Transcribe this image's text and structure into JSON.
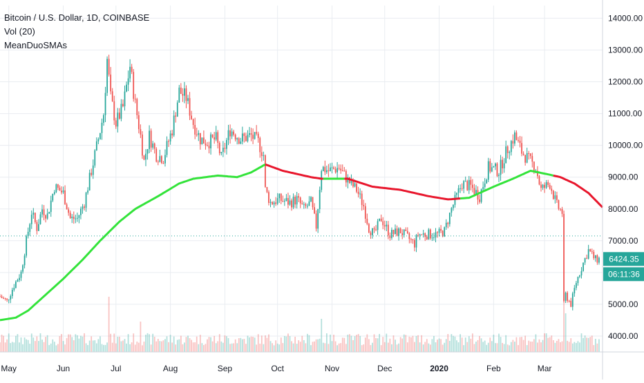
{
  "colors": {
    "up": "#26a69a",
    "down": "#ef5350",
    "sma_up": "#33e33a",
    "sma_down": "#e8162c",
    "grid": "#e9ecf1",
    "axis_text": "#131722",
    "price_line": "#26a69a",
    "badge": "#26a69a"
  },
  "legend": {
    "title": "Bitcoin / U.S. Dollar, 1D, COINBASE",
    "volume": "Vol (20)",
    "indicator": "MeanDuoSMAs"
  },
  "badges": {
    "last_price": "6424.35",
    "countdown": "06:11:36"
  },
  "chart_data": {
    "type": "candlestick",
    "title": "Bitcoin / U.S. Dollar, 1D, COINBASE",
    "x_tick_labels": [
      "May",
      "Jun",
      "Jul",
      "Aug",
      "Sep",
      "Oct",
      "Nov",
      "Dec",
      "2020",
      "Feb",
      "Mar"
    ],
    "y_tick_labels": [
      "4000.00",
      "5000.00",
      "6000.00",
      "7000.00",
      "8000.00",
      "9000.00",
      "10000.00",
      "11000.00",
      "12000.00",
      "13000.00",
      "14000.00"
    ],
    "ylim": [
      3500,
      14400
    ],
    "grid": true,
    "dotted_price_level": 7150,
    "price_anchors": [
      [
        "2019-04-26",
        5250
      ],
      [
        "2019-04-30",
        5100
      ],
      [
        "2019-05-04",
        5600
      ],
      [
        "2019-05-08",
        6000
      ],
      [
        "2019-05-11",
        7000
      ],
      [
        "2019-05-14",
        7900
      ],
      [
        "2019-05-17",
        7400
      ],
      [
        "2019-05-20",
        8000
      ],
      [
        "2019-05-23",
        7800
      ],
      [
        "2019-05-27",
        8700
      ],
      [
        "2019-06-01",
        8500
      ],
      [
        "2019-06-05",
        7700
      ],
      [
        "2019-06-09",
        7700
      ],
      [
        "2019-06-13",
        8200
      ],
      [
        "2019-06-17",
        9200
      ],
      [
        "2019-06-21",
        10200
      ],
      [
        "2019-06-24",
        11000
      ],
      [
        "2019-06-26",
        12700
      ],
      [
        "2019-06-28",
        11500
      ],
      [
        "2019-07-01",
        10700
      ],
      [
        "2019-07-05",
        11200
      ],
      [
        "2019-07-09",
        12500
      ],
      [
        "2019-07-12",
        11300
      ],
      [
        "2019-07-15",
        10300
      ],
      [
        "2019-07-17",
        9500
      ],
      [
        "2019-07-20",
        10300
      ],
      [
        "2019-07-24",
        9700
      ],
      [
        "2019-07-28",
        9600
      ],
      [
        "2019-08-02",
        10500
      ],
      [
        "2019-08-06",
        11700
      ],
      [
        "2019-08-10",
        11500
      ],
      [
        "2019-08-14",
        10700
      ],
      [
        "2019-08-18",
        10200
      ],
      [
        "2019-08-22",
        10100
      ],
      [
        "2019-08-27",
        10200
      ],
      [
        "2019-08-30",
        9600
      ],
      [
        "2019-09-04",
        10500
      ],
      [
        "2019-09-10",
        10200
      ],
      [
        "2019-09-16",
        10300
      ],
      [
        "2019-09-20",
        10100
      ],
      [
        "2019-09-23",
        9700
      ],
      [
        "2019-09-24",
        8600
      ],
      [
        "2019-09-27",
        8200
      ],
      [
        "2019-10-02",
        8300
      ],
      [
        "2019-10-08",
        8200
      ],
      [
        "2019-10-12",
        8300
      ],
      [
        "2019-10-16",
        8000
      ],
      [
        "2019-10-20",
        8200
      ],
      [
        "2019-10-23",
        7450
      ],
      [
        "2019-10-25",
        8700
      ],
      [
        "2019-10-26",
        9300
      ],
      [
        "2019-10-30",
        9200
      ],
      [
        "2019-11-05",
        9300
      ],
      [
        "2019-11-10",
        8900
      ],
      [
        "2019-11-15",
        8600
      ],
      [
        "2019-11-19",
        8100
      ],
      [
        "2019-11-22",
        7400
      ],
      [
        "2019-11-25",
        7200
      ],
      [
        "2019-11-29",
        7700
      ],
      [
        "2019-12-04",
        7200
      ],
      [
        "2019-12-10",
        7300
      ],
      [
        "2019-12-14",
        7100
      ],
      [
        "2019-12-18",
        6900
      ],
      [
        "2019-12-20",
        7200
      ],
      [
        "2019-12-25",
        7200
      ],
      [
        "2019-12-31",
        7200
      ],
      [
        "2020-01-04",
        7300
      ],
      [
        "2020-01-08",
        8000
      ],
      [
        "2020-01-14",
        8800
      ],
      [
        "2020-01-19",
        8700
      ],
      [
        "2020-01-24",
        8400
      ],
      [
        "2020-01-29",
        9300
      ],
      [
        "2020-02-04",
        9200
      ],
      [
        "2020-02-09",
        9900
      ],
      [
        "2020-02-13",
        10300
      ],
      [
        "2020-02-17",
        9800
      ],
      [
        "2020-02-20",
        9600
      ],
      [
        "2020-02-25",
        9300
      ],
      [
        "2020-02-28",
        8600
      ],
      [
        "2020-03-04",
        8800
      ],
      [
        "2020-03-08",
        8100
      ],
      [
        "2020-03-11",
        7900
      ],
      [
        "2020-03-12",
        5000
      ],
      [
        "2020-03-13",
        5300
      ],
      [
        "2020-03-16",
        5000
      ],
      [
        "2020-03-19",
        5700
      ],
      [
        "2020-03-23",
        6300
      ],
      [
        "2020-03-26",
        6700
      ],
      [
        "2020-03-30",
        6400
      ],
      [
        "2020-04-01",
        6424
      ]
    ],
    "volume": {
      "series_name": "Vol (20)",
      "spikes": [
        [
          "2019-06-27",
          1.0
        ],
        [
          "2019-07-15",
          0.55
        ],
        [
          "2019-10-26",
          0.6
        ],
        [
          "2020-03-12",
          0.95
        ],
        [
          "2020-03-13",
          0.7
        ]
      ]
    },
    "indicator": {
      "name": "MeanDuoSMAs",
      "points": [
        [
          "2019-04-26",
          4500
        ],
        [
          "2019-05-05",
          4580
        ],
        [
          "2019-05-12",
          4800
        ],
        [
          "2019-05-22",
          5300
        ],
        [
          "2019-06-01",
          5800
        ],
        [
          "2019-06-12",
          6400
        ],
        [
          "2019-06-22",
          7000
        ],
        [
          "2019-07-03",
          7600
        ],
        [
          "2019-07-12",
          8000
        ],
        [
          "2019-07-25",
          8400
        ],
        [
          "2019-08-06",
          8800
        ],
        [
          "2019-08-14",
          8950
        ],
        [
          "2019-08-28",
          9050
        ],
        [
          "2019-09-08",
          9000
        ],
        [
          "2019-09-16",
          9150
        ],
        [
          "2019-09-24",
          9400
        ],
        [
          "2019-10-04",
          9200
        ],
        [
          "2019-10-20",
          9000
        ],
        [
          "2019-10-26",
          8950
        ],
        [
          "2019-11-10",
          8950
        ],
        [
          "2019-11-24",
          8700
        ],
        [
          "2019-12-10",
          8600
        ],
        [
          "2019-12-26",
          8400
        ],
        [
          "2020-01-06",
          8300
        ],
        [
          "2020-01-18",
          8350
        ],
        [
          "2020-02-01",
          8700
        ],
        [
          "2020-02-12",
          8950
        ],
        [
          "2020-02-22",
          9200
        ],
        [
          "2020-03-02",
          9100
        ],
        [
          "2020-03-10",
          9000
        ],
        [
          "2020-03-18",
          8800
        ],
        [
          "2020-03-26",
          8500
        ],
        [
          "2020-04-03",
          8050
        ]
      ],
      "up_color_ranges": [
        [
          "2019-04-26",
          "2019-09-24"
        ],
        [
          "2019-10-28",
          "2019-11-08"
        ],
        [
          "2020-01-14",
          "2020-03-06"
        ]
      ]
    }
  }
}
